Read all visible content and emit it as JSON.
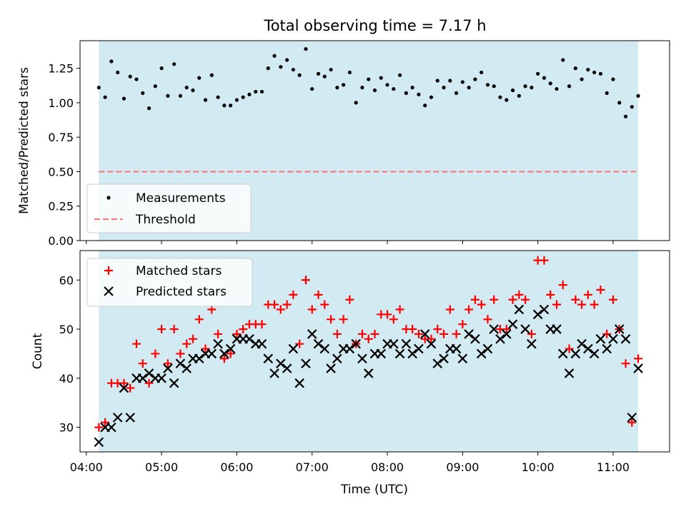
{
  "chart_data": [
    {
      "type": "scatter",
      "title": "Total observing time = 7.17 h",
      "ylabel": "Matched/Predicted stars",
      "xlabel": "",
      "ylim": [
        0,
        1.45
      ],
      "yticks": [
        "0.00",
        "0.25",
        "0.50",
        "0.75",
        "1.00",
        "1.25"
      ],
      "grid": false,
      "legend_position": "lower-left",
      "shaded_span": [
        "04:10",
        "11:20"
      ],
      "shade_color": "#add8e6",
      "series": [
        {
          "name": "Measurements",
          "marker": "dot",
          "color": "#000000",
          "x": [
            "04:10",
            "04:15",
            "04:20",
            "04:25",
            "04:30",
            "04:35",
            "04:40",
            "04:45",
            "04:50",
            "04:55",
            "05:00",
            "05:05",
            "05:10",
            "05:15",
            "05:20",
            "05:25",
            "05:30",
            "05:35",
            "05:40",
            "05:45",
            "05:50",
            "05:55",
            "06:00",
            "06:05",
            "06:10",
            "06:15",
            "06:20",
            "06:25",
            "06:30",
            "06:35",
            "06:40",
            "06:45",
            "06:50",
            "06:55",
            "07:00",
            "07:05",
            "07:10",
            "07:15",
            "07:20",
            "07:25",
            "07:30",
            "07:35",
            "07:40",
            "07:45",
            "07:50",
            "07:55",
            "08:00",
            "08:05",
            "08:10",
            "08:15",
            "08:20",
            "08:25",
            "08:30",
            "08:35",
            "08:40",
            "08:45",
            "08:50",
            "08:55",
            "09:00",
            "09:05",
            "09:10",
            "09:15",
            "09:20",
            "09:25",
            "09:30",
            "09:35",
            "09:40",
            "09:45",
            "09:50",
            "09:55",
            "10:00",
            "10:05",
            "10:10",
            "10:15",
            "10:20",
            "10:25",
            "10:30",
            "10:35",
            "10:40",
            "10:45",
            "10:50",
            "10:55",
            "11:00",
            "11:05",
            "11:10",
            "11:15",
            "11:20"
          ],
          "y": [
            1.11,
            1.04,
            1.3,
            1.22,
            1.03,
            1.19,
            1.17,
            1.07,
            0.96,
            1.12,
            1.25,
            1.05,
            1.28,
            1.05,
            1.11,
            1.09,
            1.18,
            1.02,
            1.2,
            1.04,
            0.98,
            0.98,
            1.02,
            1.04,
            1.06,
            1.08,
            1.08,
            1.25,
            1.34,
            1.26,
            1.31,
            1.24,
            1.2,
            1.39,
            1.1,
            1.21,
            1.19,
            1.24,
            1.11,
            1.13,
            1.22,
            1.0,
            1.11,
            1.17,
            1.09,
            1.18,
            1.13,
            1.1,
            1.2,
            1.07,
            1.11,
            1.06,
            0.98,
            1.04,
            1.16,
            1.11,
            1.16,
            1.07,
            1.15,
            1.11,
            1.17,
            1.22,
            1.13,
            1.12,
            1.04,
            1.02,
            1.09,
            1.05,
            1.12,
            1.11,
            1.21,
            1.18,
            1.14,
            1.1,
            1.31,
            1.12,
            1.25,
            1.17,
            1.24,
            1.22,
            1.21,
            1.07,
            1.17,
            1.0,
            0.9,
            0.97,
            1.05
          ]
        },
        {
          "name": "Threshold",
          "style": "dashed",
          "color": "#ff7070",
          "x": [
            "04:10",
            "11:20"
          ],
          "y": [
            0.5,
            0.5
          ]
        }
      ]
    },
    {
      "type": "scatter",
      "title": "",
      "xlabel": "Time (UTC)",
      "ylabel": "Count",
      "ylim": [
        25,
        66
      ],
      "yticks": [
        "30",
        "40",
        "50",
        "60"
      ],
      "xticks": [
        "04:00",
        "05:00",
        "06:00",
        "07:00",
        "08:00",
        "09:00",
        "10:00",
        "11:00"
      ],
      "grid": false,
      "legend_position": "upper-left",
      "shaded_span": [
        "04:10",
        "11:20"
      ],
      "shade_color": "#add8e6",
      "series": [
        {
          "name": "Matched stars",
          "marker": "plus",
          "color": "#ff0000",
          "x": [
            "04:10",
            "04:15",
            "04:20",
            "04:25",
            "04:30",
            "04:35",
            "04:40",
            "04:45",
            "04:50",
            "04:55",
            "05:00",
            "05:05",
            "05:10",
            "05:15",
            "05:20",
            "05:25",
            "05:30",
            "05:35",
            "05:40",
            "05:45",
            "05:50",
            "05:55",
            "06:00",
            "06:05",
            "06:10",
            "06:15",
            "06:20",
            "06:25",
            "06:30",
            "06:35",
            "06:40",
            "06:45",
            "06:50",
            "06:55",
            "07:00",
            "07:05",
            "07:10",
            "07:15",
            "07:20",
            "07:25",
            "07:30",
            "07:35",
            "07:40",
            "07:45",
            "07:50",
            "07:55",
            "08:00",
            "08:05",
            "08:10",
            "08:15",
            "08:20",
            "08:25",
            "08:30",
            "08:35",
            "08:40",
            "08:45",
            "08:50",
            "08:55",
            "09:00",
            "09:05",
            "09:10",
            "09:15",
            "09:20",
            "09:25",
            "09:30",
            "09:35",
            "09:40",
            "09:45",
            "09:50",
            "09:55",
            "10:00",
            "10:05",
            "10:10",
            "10:15",
            "10:20",
            "10:25",
            "10:30",
            "10:35",
            "10:40",
            "10:45",
            "10:50",
            "10:55",
            "11:00",
            "11:05",
            "11:10",
            "11:15",
            "11:20"
          ],
          "y": [
            30,
            31,
            39,
            39,
            39,
            38,
            47,
            43,
            39,
            45,
            50,
            43,
            50,
            45,
            47,
            48,
            52,
            46,
            54,
            49,
            44,
            45,
            49,
            50,
            51,
            51,
            51,
            55,
            55,
            54,
            55,
            57,
            47,
            60,
            54,
            57,
            55,
            52,
            49,
            52,
            56,
            47,
            49,
            48,
            49,
            53,
            53,
            52,
            54,
            50,
            50,
            49,
            48,
            48,
            50,
            49,
            54,
            49,
            51,
            54,
            56,
            55,
            52,
            56,
            50,
            50,
            56,
            57,
            56,
            49,
            64,
            64,
            57,
            55,
            59,
            46,
            56,
            55,
            57,
            55,
            58,
            49,
            56,
            50,
            43,
            31,
            44
          ]
        },
        {
          "name": "Predicted stars",
          "marker": "x",
          "color": "#000000",
          "x": [
            "04:10",
            "04:15",
            "04:20",
            "04:25",
            "04:30",
            "04:35",
            "04:40",
            "04:45",
            "04:50",
            "04:55",
            "05:00",
            "05:05",
            "05:10",
            "05:15",
            "05:20",
            "05:25",
            "05:30",
            "05:35",
            "05:40",
            "05:45",
            "05:50",
            "05:55",
            "06:00",
            "06:05",
            "06:10",
            "06:15",
            "06:20",
            "06:25",
            "06:30",
            "06:35",
            "06:40",
            "06:45",
            "06:50",
            "06:55",
            "07:00",
            "07:05",
            "07:10",
            "07:15",
            "07:20",
            "07:25",
            "07:30",
            "07:35",
            "07:40",
            "07:45",
            "07:50",
            "07:55",
            "08:00",
            "08:05",
            "08:10",
            "08:15",
            "08:20",
            "08:25",
            "08:30",
            "08:35",
            "08:40",
            "08:45",
            "08:50",
            "08:55",
            "09:00",
            "09:05",
            "09:10",
            "09:15",
            "09:20",
            "09:25",
            "09:30",
            "09:35",
            "09:40",
            "09:45",
            "09:50",
            "09:55",
            "10:00",
            "10:05",
            "10:10",
            "10:15",
            "10:20",
            "10:25",
            "10:30",
            "10:35",
            "10:40",
            "10:45",
            "10:50",
            "10:55",
            "11:00",
            "11:05",
            "11:10",
            "11:15",
            "11:20"
          ],
          "y": [
            27,
            30,
            30,
            32,
            38,
            32,
            40,
            40,
            41,
            40,
            40,
            42,
            39,
            43,
            42,
            44,
            44,
            45,
            45,
            47,
            45,
            46,
            48,
            48,
            48,
            47,
            47,
            44,
            41,
            43,
            42,
            46,
            39,
            43,
            49,
            47,
            46,
            42,
            44,
            46,
            46,
            47,
            44,
            41,
            45,
            45,
            47,
            47,
            45,
            47,
            45,
            46,
            49,
            47,
            43,
            44,
            46,
            46,
            44,
            49,
            48,
            45,
            46,
            50,
            48,
            49,
            51,
            54,
            50,
            47,
            53,
            54,
            50,
            50,
            45,
            41,
            45,
            47,
            46,
            45,
            48,
            46,
            48,
            50,
            48,
            32,
            42
          ]
        }
      ]
    }
  ]
}
